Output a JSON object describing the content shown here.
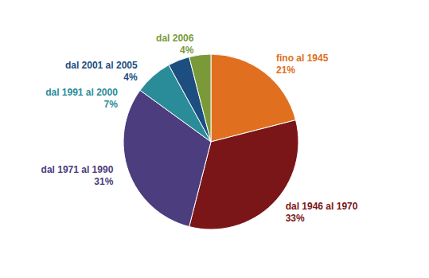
{
  "chart_data": {
    "type": "pie",
    "categories": [
      "fino al 1945",
      "dal 1946 al 1970",
      "dal 1971 al 1990",
      "dal 1991 al 2000",
      "dal 2001 al 2005",
      "dal 2006"
    ],
    "values": [
      21,
      33,
      31,
      7,
      4,
      4
    ],
    "value_labels": [
      "21%",
      "33%",
      "31%",
      "7%",
      "4%",
      "4%"
    ],
    "colors": [
      "#E07020",
      "#7B1618",
      "#4B3D7E",
      "#2B8C99",
      "#1C4E80",
      "#7A9A3A"
    ],
    "data_labels": true
  }
}
